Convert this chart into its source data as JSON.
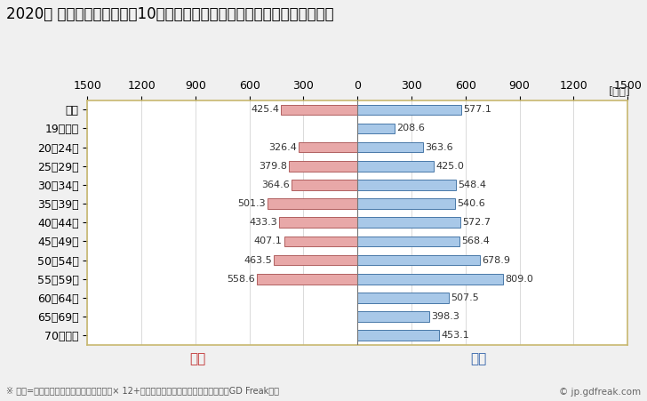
{
  "title": "2020年 民間企業（従業者数10人以上）フルタイム労働者の男女別平均年収",
  "unit_label": "[万円]",
  "categories": [
    "全体",
    "19歳以下",
    "20〜24歳",
    "25〜29歳",
    "30〜34歳",
    "35〜39歳",
    "40〜44歳",
    "45〜49歳",
    "50〜54歳",
    "55〜59歳",
    "60〜64歳",
    "65〜69歳",
    "70歳以上"
  ],
  "female_values": [
    425.4,
    0.0,
    326.4,
    379.8,
    364.6,
    501.3,
    433.3,
    407.1,
    463.5,
    558.6,
    0.0,
    0.0,
    0.0
  ],
  "male_values": [
    577.1,
    208.6,
    363.6,
    425.0,
    548.4,
    540.6,
    572.7,
    568.4,
    678.9,
    809.0,
    507.5,
    398.3,
    453.1
  ],
  "female_color": "#E8A8A8",
  "male_color": "#A8C8E8",
  "female_border_color": "#B06060",
  "male_border_color": "#4878A8",
  "female_label": "女性",
  "male_label": "男性",
  "female_label_color": "#C03030",
  "male_label_color": "#3060A8",
  "xlim": 1500,
  "background_color": "#F0F0F0",
  "plot_bg_color": "#FFFFFF",
  "title_fontsize": 12,
  "axis_fontsize": 9,
  "label_fontsize": 8,
  "footnote": "※ 年収=「きまって支給する現金給与額」× 12+「年間賞与その他特別給与額」としてGD Freak推計",
  "copyright": "© jp.gdfreak.com",
  "grid_color": "#CCCCCC",
  "spine_color": "#C8B870"
}
